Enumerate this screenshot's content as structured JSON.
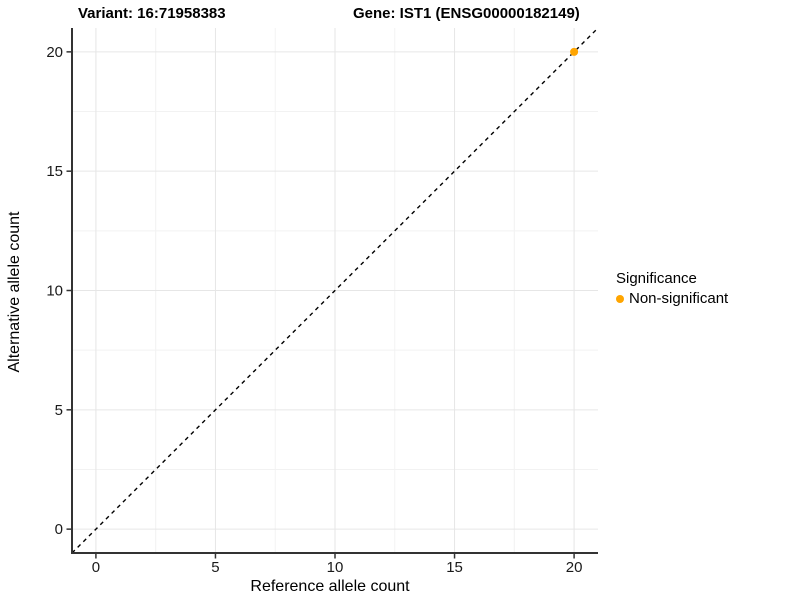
{
  "header": {
    "variant_title": "Variant: 16:71958383",
    "gene_title": "Gene: IST1 (ENSG00000182149)"
  },
  "chart_data": {
    "type": "scatter",
    "title": "Variant: 16:71958383  /  Gene: IST1 (ENSG00000182149)",
    "xlabel": "Reference allele count",
    "ylabel": "Alternative allele count",
    "xlim": [
      -1,
      21
    ],
    "ylim": [
      -1,
      21
    ],
    "x_ticks": [
      0,
      5,
      10,
      15,
      20
    ],
    "y_ticks": [
      0,
      5,
      10,
      15,
      20
    ],
    "x_tick_labels": [
      "0",
      "5",
      "10",
      "15",
      "20"
    ],
    "y_tick_labels": [
      "0",
      "5",
      "10",
      "15",
      "20"
    ],
    "minor_ticks": [
      2.5,
      7.5,
      12.5,
      17.5
    ],
    "grid": true,
    "series": [
      {
        "name": "Non-significant",
        "color": "#FFA500",
        "points": [
          [
            20,
            20
          ]
        ]
      }
    ],
    "reference_line": {
      "slope": 1,
      "intercept": 0,
      "style": "dashed",
      "color": "#000000",
      "from": [
        -1,
        -1
      ],
      "to": [
        21,
        21
      ]
    },
    "legend": {
      "title": "Significance",
      "position": "right",
      "entries": [
        {
          "label": "Non-significant",
          "color": "#FFA500"
        }
      ]
    }
  }
}
